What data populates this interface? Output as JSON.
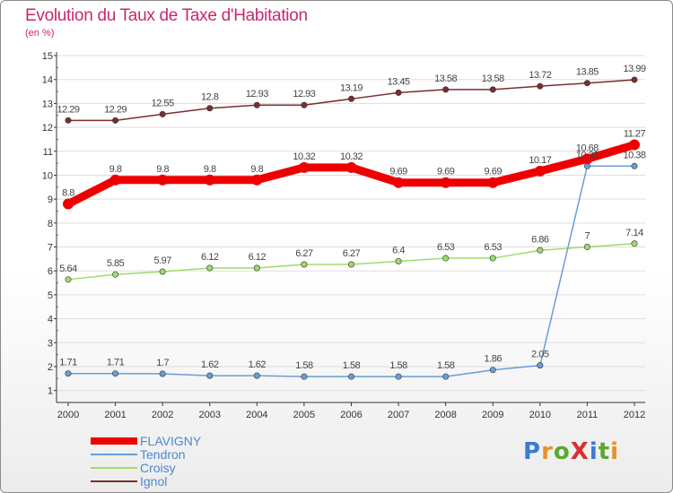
{
  "title": "Evolution du Taux de Taxe d'Habitation",
  "subtitle": "(en %)",
  "logo": {
    "text": "ProXiti",
    "letter_colors": [
      "#3a7bd5",
      "#e8902a",
      "#5aa832",
      "#d83030",
      "#3a7bd5",
      "#5aa832",
      "#e8902a"
    ]
  },
  "colors": {
    "title": "#c8286e",
    "axis": "#333333",
    "grid": "#dddddd",
    "legend_text": "#4a8ad0"
  },
  "chart_data": {
    "type": "line",
    "title": "Evolution du Taux de Taxe d'Habitation",
    "subtitle": "(en %)",
    "xlabel": "",
    "ylabel": "",
    "ylim": [
      1,
      15
    ],
    "grid": true,
    "legend_position": "bottom-left",
    "x": [
      "2000",
      "2001",
      "2002",
      "2003",
      "2004",
      "2005",
      "2006",
      "2007",
      "2008",
      "2009",
      "2010",
      "2011",
      "2012"
    ],
    "y_ticks": [
      "1",
      "2",
      "3",
      "4",
      "5",
      "6",
      "7",
      "8",
      "9",
      "10",
      "11",
      "12",
      "13",
      "14",
      "15"
    ],
    "series": [
      {
        "name": "FLAVIGNY",
        "color": "#ee0000",
        "thick": true,
        "values": [
          8.8,
          9.8,
          9.8,
          9.8,
          9.8,
          10.32,
          10.32,
          9.69,
          9.69,
          9.69,
          10.17,
          10.68,
          11.27
        ],
        "labels": [
          "8.8",
          "9.8",
          "9.8",
          "9.8",
          "9.8",
          "10.32",
          "10.32",
          "9.69",
          "9.69",
          "9.69",
          "10.17",
          "10.68",
          "11.27"
        ]
      },
      {
        "name": "Tendron",
        "color": "#6a9ed4",
        "thick": false,
        "values": [
          1.71,
          1.71,
          1.7,
          1.62,
          1.62,
          1.58,
          1.58,
          1.58,
          1.58,
          1.86,
          2.05,
          10.38,
          10.38
        ],
        "labels": [
          "1.71",
          "1.71",
          "1.7",
          "1.62",
          "1.62",
          "1.58",
          "1.58",
          "1.58",
          "1.58",
          "1.86",
          "2.05",
          "10.38",
          "10.38"
        ]
      },
      {
        "name": "Croisy",
        "color": "#9edb6a",
        "thick": false,
        "values": [
          5.64,
          5.85,
          5.97,
          6.12,
          6.12,
          6.27,
          6.27,
          6.4,
          6.53,
          6.53,
          6.86,
          7,
          7.14
        ],
        "labels": [
          "5.64",
          "5.85",
          "5.97",
          "6.12",
          "6.12",
          "6.27",
          "6.27",
          "6.4",
          "6.53",
          "6.53",
          "6.86",
          "7",
          "7.14"
        ]
      },
      {
        "name": "Ignol",
        "color": "#7a2e2e",
        "thick": false,
        "values": [
          12.29,
          12.29,
          12.55,
          12.8,
          12.93,
          12.93,
          13.19,
          13.45,
          13.58,
          13.58,
          13.72,
          13.85,
          13.99
        ],
        "labels": [
          "12.29",
          "12.29",
          "12.55",
          "12.8",
          "12.93",
          "12.93",
          "13.19",
          "13.45",
          "13.58",
          "13.58",
          "13.72",
          "13.85",
          "13.99"
        ]
      }
    ]
  },
  "legend": {
    "items": [
      {
        "label": "FLAVIGNY",
        "color": "#ee0000"
      },
      {
        "label": "Tendron",
        "color": "#6a9ed4"
      },
      {
        "label": "Croisy",
        "color": "#9edb6a"
      },
      {
        "label": "Ignol",
        "color": "#7a2e2e"
      }
    ]
  }
}
